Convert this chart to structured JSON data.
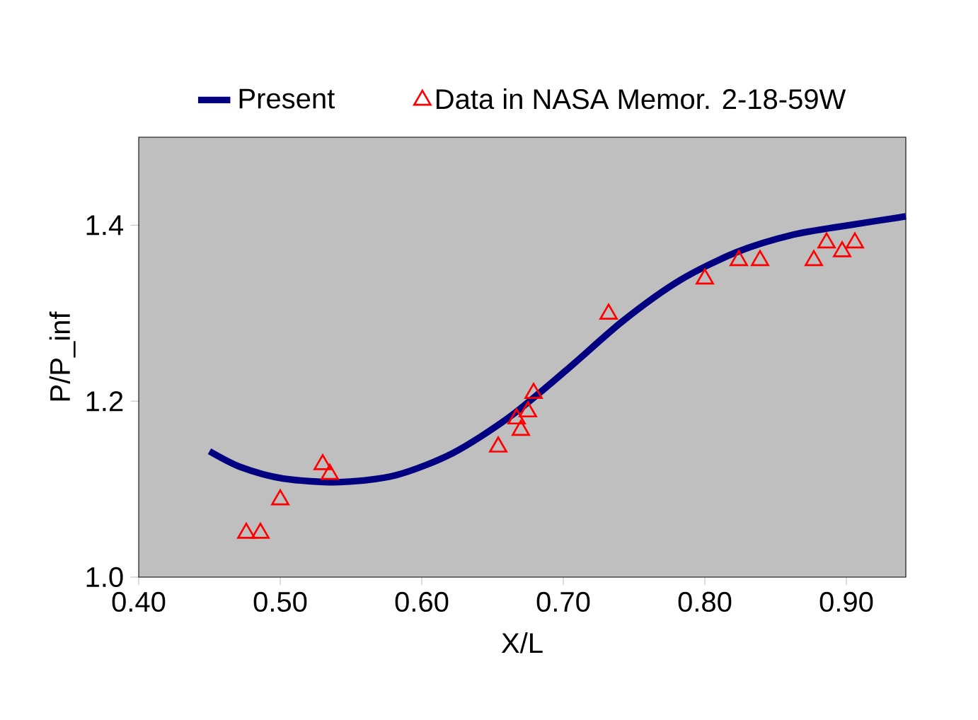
{
  "chart_data": {
    "type": "line",
    "xlabel": "X/L",
    "ylabel": "P/P_inf",
    "xlim": [
      0.4,
      0.942
    ],
    "ylim": [
      1.0,
      1.5
    ],
    "xticks": [
      {
        "value": 0.4,
        "label": "0.40"
      },
      {
        "value": 0.5,
        "label": "0.50"
      },
      {
        "value": 0.6,
        "label": "0.60"
      },
      {
        "value": 0.7,
        "label": "0.70"
      },
      {
        "value": 0.8,
        "label": "0.80"
      },
      {
        "value": 0.9,
        "label": "0.90"
      }
    ],
    "yticks": [
      {
        "value": 1.0,
        "label": "1.0"
      },
      1.2,
      1.4
    ],
    "grid": false,
    "legend": "top",
    "series": [
      {
        "name": "Present",
        "color": "#000080",
        "marker": "none",
        "x": [
          0.45,
          0.472,
          0.502,
          0.542,
          0.582,
          0.622,
          0.662,
          0.702,
          0.742,
          0.782,
          0.822,
          0.862,
          0.902,
          0.942
        ],
        "values": [
          1.143,
          1.125,
          1.112,
          1.108,
          1.116,
          1.141,
          1.182,
          1.235,
          1.291,
          1.337,
          1.369,
          1.389,
          1.4,
          1.41
        ]
      },
      {
        "name": "Data in NASA Memor. 2-18-59W",
        "type": "scatter",
        "color": "#ff0000",
        "marker": "triangle",
        "x": [
          0.476,
          0.486,
          0.5,
          0.53,
          0.535,
          0.654,
          0.667,
          0.67,
          0.675,
          0.679,
          0.732,
          0.8,
          0.824,
          0.839,
          0.877,
          0.886,
          0.897,
          0.906
        ],
        "values": [
          1.05,
          1.05,
          1.088,
          1.128,
          1.117,
          1.148,
          1.18,
          1.167,
          1.188,
          1.209,
          1.299,
          1.339,
          1.36,
          1.36,
          1.36,
          1.38,
          1.37,
          1.38
        ]
      }
    ]
  }
}
